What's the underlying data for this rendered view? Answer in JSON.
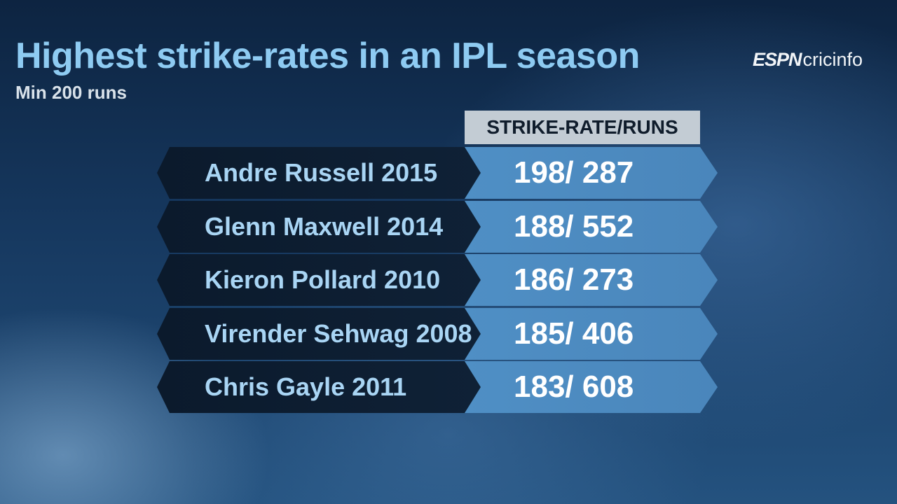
{
  "logo": {
    "espn": "ESPN",
    "cricinfo": "cricinfo"
  },
  "chart_data": {
    "type": "table",
    "title": "Highest strike-rates in an IPL season",
    "subtitle": "Min 200 runs",
    "column_header": "STRIKE-RATE/RUNS",
    "rows": [
      {
        "label": "Andre Russell 2015",
        "strike_rate": 198,
        "runs": 287,
        "display": "198/ 287"
      },
      {
        "label": "Glenn Maxwell 2014",
        "strike_rate": 188,
        "runs": 552,
        "display": "188/ 552"
      },
      {
        "label": "Kieron Pollard 2010",
        "strike_rate": 186,
        "runs": 273,
        "display": "186/ 273"
      },
      {
        "label": "Virender Sehwag 2008",
        "strike_rate": 185,
        "runs": 406,
        "display": "185/ 406"
      },
      {
        "label": "Chris Gayle 2011",
        "strike_rate": 183,
        "runs": 608,
        "display": "183/ 608"
      }
    ]
  }
}
